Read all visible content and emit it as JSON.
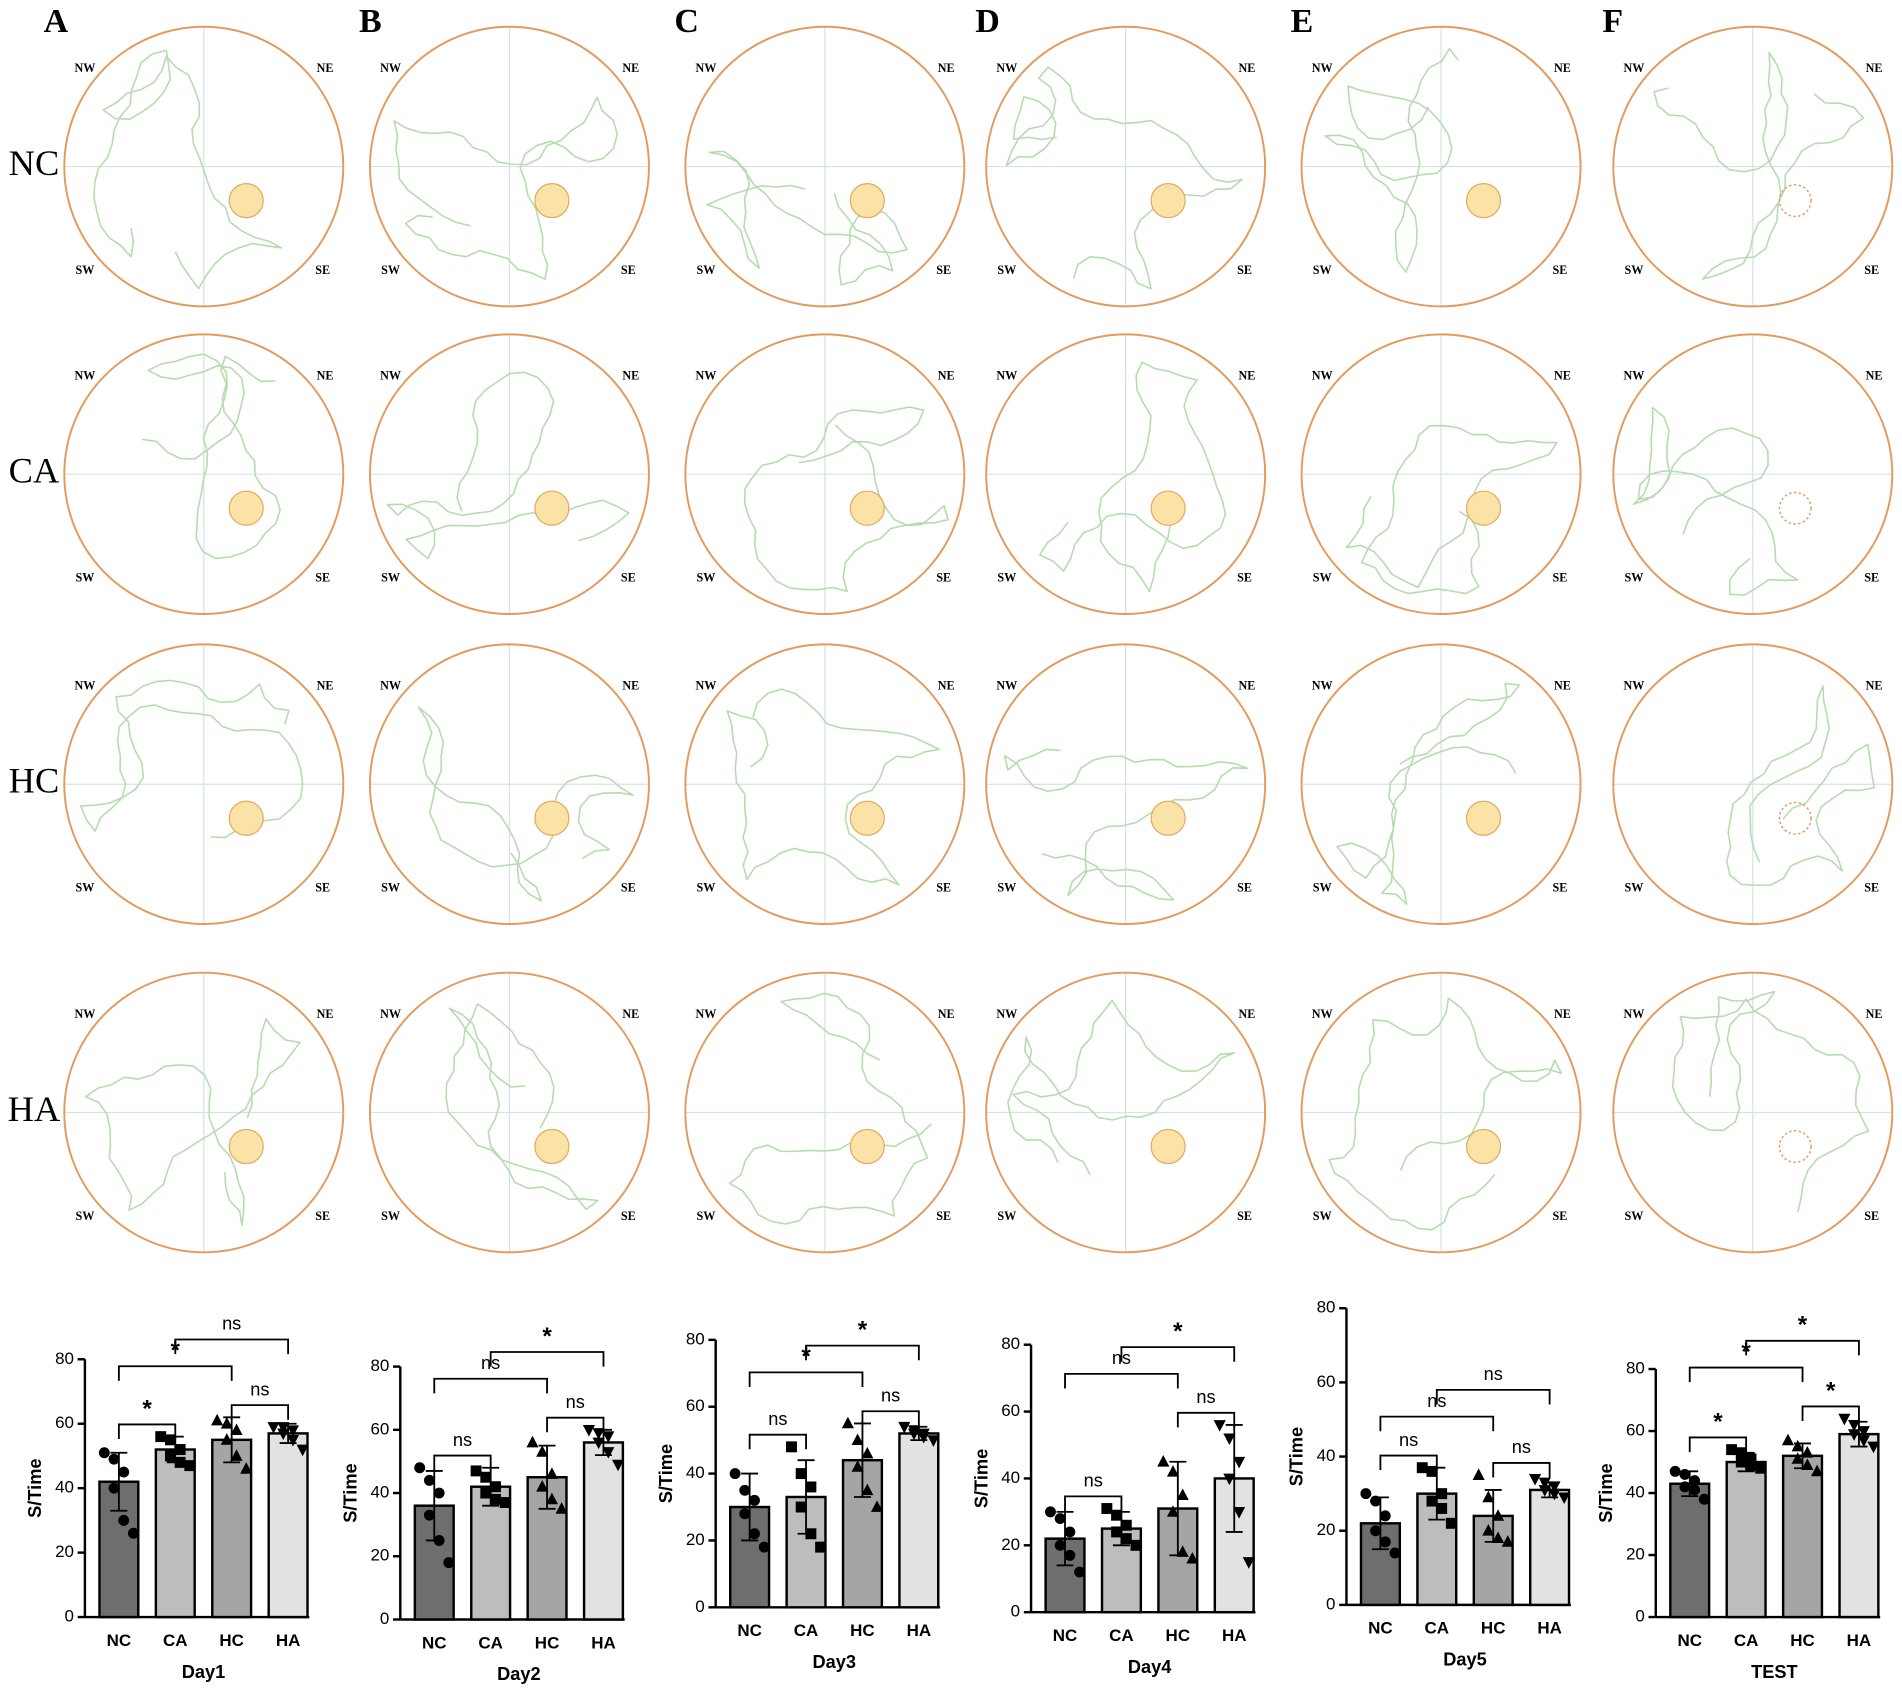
{
  "panel_letters": [
    "A",
    "B",
    "C",
    "D",
    "E",
    "F"
  ],
  "groups": [
    "NC",
    "CA",
    "HC",
    "HA"
  ],
  "compass": [
    "NW",
    "NE",
    "SW",
    "SE"
  ],
  "chart_data": [
    {
      "type": "bar",
      "xlabel": "Day1",
      "ylabel": "S/Time",
      "categories": [
        "NC",
        "CA",
        "HC",
        "HA"
      ],
      "values": [
        42,
        52,
        55,
        57
      ],
      "errors": [
        9,
        4,
        7,
        3
      ],
      "colors": [
        "#6e6e6e",
        "#bdbdbd",
        "#a5a5a5",
        "#e2e2e2"
      ],
      "points": [
        [
          51,
          49,
          45,
          40,
          30,
          26
        ],
        [
          56,
          55,
          52,
          50,
          48,
          47
        ],
        [
          61,
          60,
          58,
          55,
          50,
          46
        ],
        [
          59,
          59,
          58,
          57,
          55,
          52
        ]
      ],
      "ylim": [
        0,
        80
      ],
      "yticks": [
        0,
        20,
        40,
        60,
        80
      ],
      "significance": [
        {
          "pair": [
            0,
            1
          ],
          "label": "*"
        },
        {
          "pair": [
            2,
            3
          ],
          "label": "ns"
        },
        {
          "pair": [
            0,
            2
          ],
          "label": "*"
        },
        {
          "pair": [
            1,
            3
          ],
          "label": "ns"
        }
      ]
    },
    {
      "type": "bar",
      "xlabel": "Day2",
      "ylabel": "S/Time",
      "categories": [
        "NC",
        "CA",
        "HC",
        "HA"
      ],
      "values": [
        36,
        42,
        45,
        56
      ],
      "errors": [
        11,
        6,
        10,
        4
      ],
      "colors": [
        "#6e6e6e",
        "#bdbdbd",
        "#a5a5a5",
        "#e2e2e2"
      ],
      "points": [
        [
          48,
          44,
          40,
          33,
          25,
          18
        ],
        [
          47,
          45,
          42,
          40,
          38,
          37
        ],
        [
          56,
          53,
          46,
          42,
          38,
          35
        ],
        [
          60,
          59,
          58,
          56,
          53,
          49
        ]
      ],
      "ylim": [
        0,
        80
      ],
      "yticks": [
        0,
        20,
        40,
        60,
        80
      ],
      "significance": [
        {
          "pair": [
            0,
            1
          ],
          "label": "ns"
        },
        {
          "pair": [
            2,
            3
          ],
          "label": "ns"
        },
        {
          "pair": [
            0,
            2
          ],
          "label": "ns"
        },
        {
          "pair": [
            1,
            3
          ],
          "label": "*"
        }
      ]
    },
    {
      "type": "bar",
      "xlabel": "Day3",
      "ylabel": "S/Time",
      "categories": [
        "NC",
        "CA",
        "HC",
        "HA"
      ],
      "values": [
        30,
        33,
        44,
        52
      ],
      "errors": [
        10,
        11,
        11,
        2
      ],
      "colors": [
        "#6e6e6e",
        "#bdbdbd",
        "#a5a5a5",
        "#e2e2e2"
      ],
      "points": [
        [
          40,
          35,
          32,
          28,
          22,
          18
        ],
        [
          48,
          40,
          36,
          30,
          22,
          18
        ],
        [
          55,
          50,
          46,
          42,
          35,
          30
        ],
        [
          54,
          53,
          52,
          52,
          51,
          50
        ]
      ],
      "ylim": [
        0,
        80
      ],
      "yticks": [
        0,
        20,
        40,
        60,
        80
      ],
      "significance": [
        {
          "pair": [
            0,
            1
          ],
          "label": "ns"
        },
        {
          "pair": [
            2,
            3
          ],
          "label": "ns"
        },
        {
          "pair": [
            0,
            2
          ],
          "label": "*"
        },
        {
          "pair": [
            1,
            3
          ],
          "label": "*"
        }
      ]
    },
    {
      "type": "bar",
      "xlabel": "Day4",
      "ylabel": "S/Time",
      "categories": [
        "NC",
        "CA",
        "HC",
        "HA"
      ],
      "values": [
        22,
        25,
        31,
        40
      ],
      "errors": [
        8,
        5,
        14,
        16
      ],
      "colors": [
        "#6e6e6e",
        "#bdbdbd",
        "#a5a5a5",
        "#e2e2e2"
      ],
      "points": [
        [
          30,
          28,
          24,
          20,
          17,
          12
        ],
        [
          31,
          29,
          26,
          24,
          22,
          20
        ],
        [
          45,
          42,
          35,
          30,
          18,
          16
        ],
        [
          56,
          52,
          45,
          40,
          30,
          15
        ]
      ],
      "ylim": [
        0,
        80
      ],
      "yticks": [
        0,
        20,
        40,
        60,
        80
      ],
      "significance": [
        {
          "pair": [
            0,
            1
          ],
          "label": "ns"
        },
        {
          "pair": [
            2,
            3
          ],
          "label": "ns"
        },
        {
          "pair": [
            0,
            2
          ],
          "label": "ns"
        },
        {
          "pair": [
            1,
            3
          ],
          "label": "*"
        }
      ]
    },
    {
      "type": "bar",
      "xlabel": "Day5",
      "ylabel": "S/Time",
      "categories": [
        "NC",
        "CA",
        "HC",
        "HA"
      ],
      "values": [
        22,
        30,
        24,
        31
      ],
      "errors": [
        7,
        7,
        7,
        2
      ],
      "colors": [
        "#6e6e6e",
        "#bdbdbd",
        "#a5a5a5",
        "#e2e2e2"
      ],
      "points": [
        [
          30,
          28,
          24,
          20,
          17,
          14
        ],
        [
          37,
          36,
          30,
          28,
          26,
          22
        ],
        [
          35,
          29,
          24,
          20,
          18,
          17
        ],
        [
          34,
          33,
          32,
          31,
          30,
          29
        ]
      ],
      "ylim": [
        0,
        80
      ],
      "yticks": [
        0,
        20,
        40,
        60,
        80
      ],
      "significance": [
        {
          "pair": [
            0,
            1
          ],
          "label": "ns"
        },
        {
          "pair": [
            2,
            3
          ],
          "label": "ns"
        },
        {
          "pair": [
            0,
            2
          ],
          "label": "ns"
        },
        {
          "pair": [
            1,
            3
          ],
          "label": "ns"
        }
      ]
    },
    {
      "type": "bar",
      "xlabel": "TEST",
      "ylabel": "S/Time",
      "categories": [
        "NC",
        "CA",
        "HC",
        "HA"
      ],
      "values": [
        43,
        50,
        52,
        59
      ],
      "errors": [
        4,
        3,
        4,
        4
      ],
      "colors": [
        "#6e6e6e",
        "#bdbdbd",
        "#a5a5a5",
        "#e2e2e2"
      ],
      "points": [
        [
          47,
          46,
          44,
          42,
          41,
          38
        ],
        [
          54,
          53,
          51,
          50,
          49,
          48
        ],
        [
          57,
          55,
          53,
          51,
          49,
          47
        ],
        [
          64,
          62,
          60,
          59,
          57,
          55
        ]
      ],
      "ylim": [
        0,
        80
      ],
      "yticks": [
        0,
        20,
        40,
        60,
        80
      ],
      "significance": [
        {
          "pair": [
            0,
            1
          ],
          "label": "*"
        },
        {
          "pair": [
            2,
            3
          ],
          "label": "*"
        },
        {
          "pair": [
            0,
            2
          ],
          "label": "*"
        },
        {
          "pair": [
            1,
            3
          ],
          "label": "*"
        }
      ]
    }
  ]
}
